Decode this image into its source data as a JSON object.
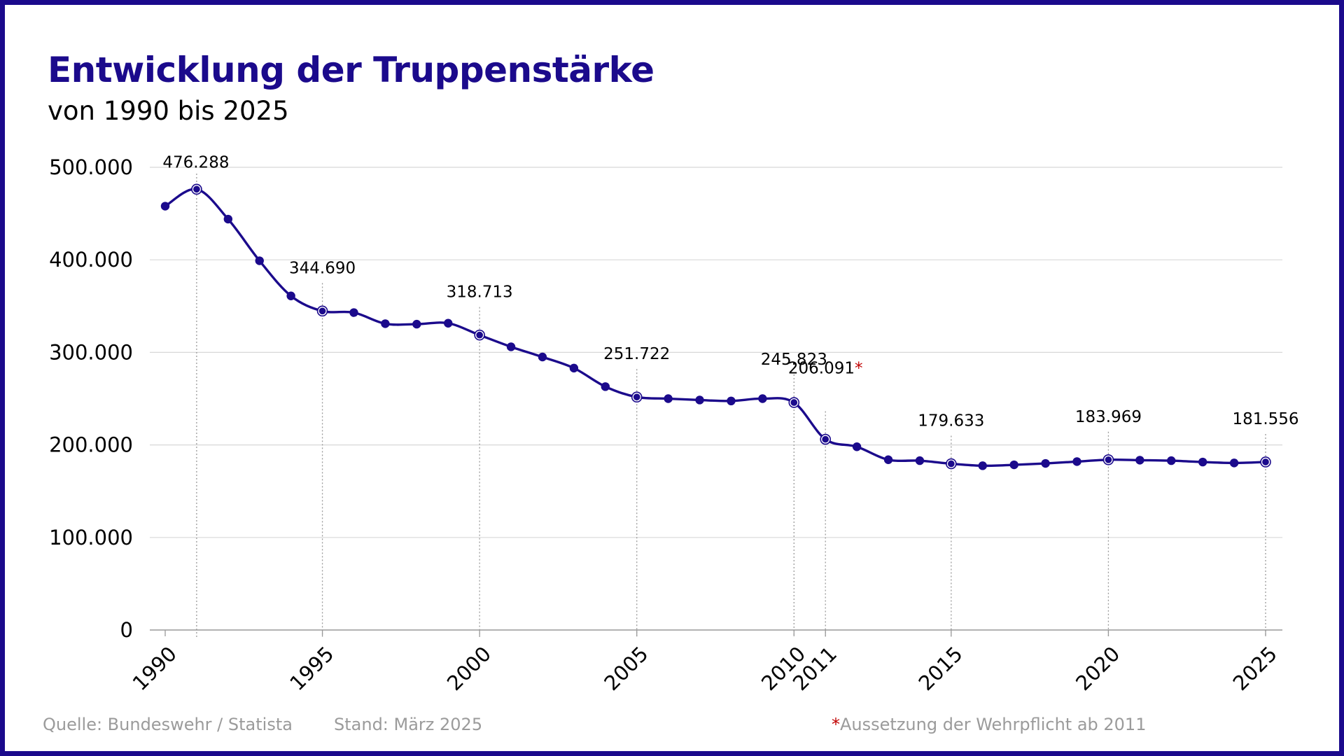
{
  "header": {
    "title": "Entwicklung der Truppenstärke",
    "subtitle": "von 1990 bis 2025"
  },
  "footer": {
    "source": "Quelle: Bundeswehr / Statista",
    "date": "Stand: März 2025",
    "note_mark": "*",
    "note": "Aussetzung der Wehrpflicht ab 2011"
  },
  "colors": {
    "line": "#1b0a8c",
    "frame": "#1b0a8c",
    "grid": "#d8d8d8",
    "note_mark": "#c00000"
  },
  "chart_data": {
    "type": "line",
    "title": "Entwicklung der Truppenstärke",
    "subtitle": "von 1990 bis 2025",
    "xlabel": "",
    "ylabel": "",
    "ylim": [
      0,
      500000
    ],
    "y_ticks": [
      0,
      100000,
      200000,
      300000,
      400000,
      500000
    ],
    "y_tick_labels": [
      "0",
      "100.000",
      "200.000",
      "300.000",
      "400.000",
      "500.000"
    ],
    "x_ticks": [
      1990,
      1995,
      2000,
      2005,
      2010,
      2011,
      2015,
      2020,
      2025
    ],
    "x_tick_labels": [
      "1990",
      "1995",
      "2000",
      "2005",
      "2010",
      "2011",
      "2015",
      "2020",
      "2025"
    ],
    "grid": true,
    "series": [
      {
        "x": [
          1990,
          1991,
          1992,
          1993,
          1994,
          1995,
          1996,
          1997,
          1998,
          1999,
          2000,
          2001,
          2002,
          2003,
          2004,
          2005,
          2006,
          2007,
          2008,
          2009,
          2010,
          2011,
          2012,
          2013,
          2014,
          2015,
          2016,
          2017,
          2018,
          2019,
          2020,
          2021,
          2022,
          2023,
          2024,
          2025
        ],
        "values": [
          458000,
          476288,
          444000,
          399000,
          361000,
          344690,
          343000,
          331000,
          330500,
          331500,
          318713,
          306000,
          295000,
          283000,
          263000,
          251722,
          250000,
          248500,
          247500,
          250000,
          245823,
          206091,
          198000,
          184000,
          183000,
          179633,
          177500,
          178500,
          180000,
          182000,
          183969,
          183500,
          183000,
          181500,
          180500,
          181556
        ]
      }
    ],
    "annotations": [
      {
        "x": 1991,
        "label": "476.288"
      },
      {
        "x": 1995,
        "label": "344.690"
      },
      {
        "x": 2000,
        "label": "318.713"
      },
      {
        "x": 2005,
        "label": "251.722"
      },
      {
        "x": 2010,
        "label": "245.823"
      },
      {
        "x": 2011,
        "label": "206.091",
        "mark": "*"
      },
      {
        "x": 2015,
        "label": "179.633"
      },
      {
        "x": 2020,
        "label": "183.969"
      },
      {
        "x": 2025,
        "label": "181.556"
      }
    ]
  }
}
